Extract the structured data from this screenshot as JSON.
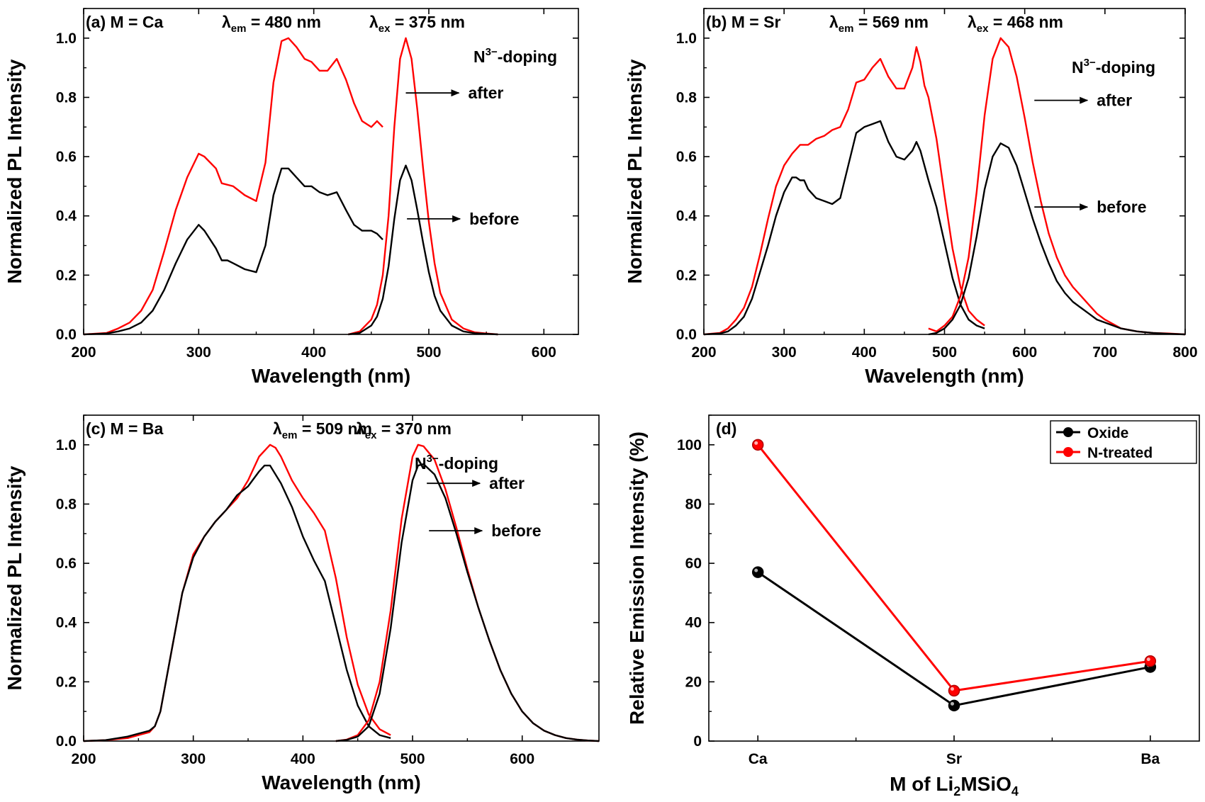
{
  "colors": {
    "oxide": "#000000",
    "n_treated": "#ff0000"
  },
  "chart_data": [
    {
      "id": "a",
      "type": "line",
      "annotation": {
        "label": "(a) M = Ca",
        "lambda_em": "480 nm",
        "lambda_ex": "375 nm"
      },
      "xlabel": "Wavelength (nm)",
      "ylabel": "Normalized PL Intensity",
      "xlim": [
        200,
        630
      ],
      "ylim": [
        0,
        1.1
      ],
      "xticks": [
        200,
        300,
        400,
        500,
        600
      ],
      "yticks": [
        0.0,
        0.2,
        0.4,
        0.6,
        0.8,
        1.0
      ],
      "doping_label": "-doping",
      "doping_ion": "N",
      "doping_sup": "3−",
      "arrow_after": "after",
      "arrow_before": "before",
      "arrow_after_at": [
        480,
        0.815
      ],
      "arrow_before_at": [
        481,
        0.39
      ],
      "series": [
        {
          "name": "after",
          "role": "excitation",
          "color": "#ff0000",
          "x": [
            200,
            220,
            230,
            240,
            250,
            260,
            270,
            280,
            290,
            300,
            305,
            310,
            315,
            320,
            330,
            340,
            350,
            358,
            365,
            372,
            378,
            385,
            392,
            398,
            405,
            412,
            420,
            428,
            435,
            442,
            450,
            455,
            460
          ],
          "y": [
            0,
            0.005,
            0.02,
            0.04,
            0.08,
            0.15,
            0.28,
            0.42,
            0.53,
            0.61,
            0.6,
            0.58,
            0.56,
            0.51,
            0.5,
            0.47,
            0.45,
            0.58,
            0.85,
            0.99,
            1.0,
            0.97,
            0.93,
            0.92,
            0.89,
            0.89,
            0.93,
            0.86,
            0.78,
            0.72,
            0.7,
            0.72,
            0.7
          ]
        },
        {
          "name": "before",
          "role": "excitation",
          "color": "#000000",
          "x": [
            200,
            220,
            230,
            240,
            250,
            260,
            270,
            280,
            290,
            300,
            305,
            310,
            315,
            320,
            325,
            330,
            340,
            350,
            358,
            365,
            372,
            378,
            385,
            392,
            398,
            405,
            412,
            420,
            428,
            435,
            442,
            450,
            455,
            460
          ],
          "y": [
            0,
            0.003,
            0.01,
            0.02,
            0.04,
            0.08,
            0.15,
            0.24,
            0.32,
            0.37,
            0.35,
            0.32,
            0.29,
            0.25,
            0.25,
            0.24,
            0.22,
            0.21,
            0.3,
            0.47,
            0.56,
            0.56,
            0.53,
            0.5,
            0.5,
            0.48,
            0.47,
            0.48,
            0.42,
            0.37,
            0.35,
            0.35,
            0.34,
            0.32
          ]
        },
        {
          "name": "after",
          "role": "emission",
          "color": "#ff0000",
          "x": [
            430,
            440,
            450,
            455,
            460,
            465,
            470,
            475,
            480,
            485,
            490,
            495,
            500,
            505,
            510,
            520,
            530,
            540,
            550,
            560
          ],
          "y": [
            0,
            0.01,
            0.05,
            0.1,
            0.2,
            0.4,
            0.7,
            0.93,
            1.0,
            0.93,
            0.76,
            0.56,
            0.38,
            0.24,
            0.14,
            0.05,
            0.02,
            0.007,
            0.003,
            0
          ]
        },
        {
          "name": "before",
          "role": "emission",
          "color": "#000000",
          "x": [
            430,
            440,
            450,
            455,
            460,
            465,
            470,
            475,
            480,
            485,
            490,
            495,
            500,
            505,
            510,
            520,
            530,
            540,
            550,
            560
          ],
          "y": [
            0,
            0.005,
            0.03,
            0.06,
            0.12,
            0.23,
            0.39,
            0.52,
            0.57,
            0.52,
            0.42,
            0.31,
            0.21,
            0.13,
            0.08,
            0.03,
            0.01,
            0.004,
            0.002,
            0
          ]
        }
      ]
    },
    {
      "id": "b",
      "type": "line",
      "annotation": {
        "label": "(b) M = Sr",
        "lambda_em": "569 nm",
        "lambda_ex": "468 nm"
      },
      "xlabel": "Wavelength (nm)",
      "ylabel": "Normalized PL Intensity",
      "xlim": [
        200,
        800
      ],
      "ylim": [
        0,
        1.1
      ],
      "xticks": [
        200,
        300,
        400,
        500,
        600,
        700,
        800
      ],
      "yticks": [
        0.0,
        0.2,
        0.4,
        0.6,
        0.8,
        1.0
      ],
      "doping_label": "-doping",
      "doping_ion": "N",
      "doping_sup": "3−",
      "arrow_after": "after",
      "arrow_before": "before",
      "arrow_after_at": [
        612,
        0.79
      ],
      "arrow_before_at": [
        612,
        0.43
      ],
      "series": [
        {
          "name": "after",
          "role": "excitation",
          "color": "#ff0000",
          "x": [
            200,
            220,
            230,
            240,
            250,
            260,
            270,
            280,
            290,
            300,
            310,
            320,
            330,
            340,
            350,
            360,
            370,
            380,
            390,
            400,
            410,
            420,
            430,
            440,
            450,
            460,
            465,
            470,
            475,
            480,
            490,
            500,
            510,
            520,
            530,
            540,
            550
          ],
          "y": [
            0,
            0.005,
            0.02,
            0.05,
            0.09,
            0.16,
            0.27,
            0.39,
            0.5,
            0.57,
            0.61,
            0.64,
            0.64,
            0.66,
            0.67,
            0.69,
            0.7,
            0.76,
            0.85,
            0.86,
            0.9,
            0.93,
            0.87,
            0.83,
            0.83,
            0.9,
            0.97,
            0.92,
            0.84,
            0.8,
            0.66,
            0.47,
            0.29,
            0.16,
            0.08,
            0.05,
            0.03
          ]
        },
        {
          "name": "before",
          "role": "excitation",
          "color": "#000000",
          "x": [
            200,
            220,
            230,
            240,
            250,
            260,
            270,
            280,
            290,
            300,
            310,
            315,
            320,
            325,
            330,
            340,
            350,
            360,
            370,
            380,
            390,
            400,
            410,
            420,
            430,
            440,
            450,
            460,
            465,
            470,
            480,
            490,
            500,
            510,
            520,
            530,
            540,
            550
          ],
          "y": [
            0,
            0.003,
            0.01,
            0.03,
            0.06,
            0.12,
            0.21,
            0.3,
            0.4,
            0.48,
            0.53,
            0.53,
            0.52,
            0.52,
            0.49,
            0.46,
            0.45,
            0.44,
            0.46,
            0.57,
            0.68,
            0.7,
            0.71,
            0.72,
            0.65,
            0.6,
            0.59,
            0.62,
            0.65,
            0.62,
            0.52,
            0.43,
            0.31,
            0.19,
            0.1,
            0.05,
            0.03,
            0.02
          ]
        },
        {
          "name": "after",
          "role": "emission",
          "color": "#ff0000",
          "x": [
            480,
            490,
            500,
            510,
            520,
            530,
            540,
            550,
            560,
            570,
            580,
            590,
            600,
            610,
            620,
            630,
            640,
            650,
            660,
            670,
            680,
            690,
            700,
            720,
            740,
            760,
            780,
            800
          ],
          "y": [
            0.02,
            0.01,
            0.03,
            0.06,
            0.13,
            0.26,
            0.48,
            0.74,
            0.93,
            1.0,
            0.97,
            0.87,
            0.73,
            0.58,
            0.45,
            0.34,
            0.26,
            0.2,
            0.16,
            0.13,
            0.1,
            0.07,
            0.05,
            0.02,
            0.01,
            0.005,
            0.003,
            0
          ]
        },
        {
          "name": "before",
          "role": "emission",
          "color": "#000000",
          "x": [
            480,
            490,
            500,
            510,
            520,
            530,
            540,
            550,
            560,
            570,
            580,
            590,
            600,
            610,
            620,
            630,
            640,
            650,
            660,
            670,
            680,
            690,
            700,
            720,
            740,
            760,
            780,
            800
          ],
          "y": [
            0,
            0.005,
            0.02,
            0.05,
            0.1,
            0.19,
            0.33,
            0.49,
            0.6,
            0.645,
            0.63,
            0.57,
            0.48,
            0.39,
            0.31,
            0.24,
            0.18,
            0.14,
            0.11,
            0.09,
            0.07,
            0.05,
            0.04,
            0.02,
            0.01,
            0.005,
            0.002,
            0
          ]
        }
      ]
    },
    {
      "id": "c",
      "type": "line",
      "annotation": {
        "label": "(c) M = Ba",
        "lambda_em": "509 nm",
        "lambda_ex": "370 nm"
      },
      "xlabel": "Wavelength (nm)",
      "ylabel": "Normalized PL Intensity",
      "xlim": [
        200,
        670
      ],
      "ylim": [
        0,
        1.1
      ],
      "xticks": [
        200,
        300,
        400,
        500,
        600
      ],
      "yticks": [
        0.0,
        0.2,
        0.4,
        0.6,
        0.8,
        1.0
      ],
      "doping_label": "-doping",
      "doping_ion": "N",
      "doping_sup": "3−",
      "arrow_after": "after",
      "arrow_before": "before",
      "arrow_after_at": [
        513,
        0.87
      ],
      "arrow_before_at": [
        515,
        0.71
      ],
      "series": [
        {
          "name": "after",
          "role": "excitation",
          "color": "#ff0000",
          "x": [
            200,
            220,
            240,
            250,
            260,
            265,
            270,
            280,
            290,
            300,
            310,
            320,
            330,
            340,
            350,
            360,
            370,
            375,
            380,
            390,
            400,
            410,
            420,
            430,
            440,
            450,
            460,
            470,
            480
          ],
          "y": [
            0,
            0.003,
            0.01,
            0.02,
            0.03,
            0.05,
            0.1,
            0.3,
            0.5,
            0.63,
            0.69,
            0.74,
            0.78,
            0.82,
            0.88,
            0.96,
            1.0,
            0.99,
            0.96,
            0.88,
            0.82,
            0.77,
            0.71,
            0.55,
            0.35,
            0.19,
            0.09,
            0.04,
            0.02
          ]
        },
        {
          "name": "before",
          "role": "excitation",
          "color": "#000000",
          "x": [
            200,
            220,
            240,
            250,
            260,
            265,
            270,
            280,
            290,
            300,
            310,
            320,
            330,
            340,
            350,
            360,
            365,
            370,
            380,
            390,
            400,
            410,
            420,
            430,
            440,
            450,
            460,
            470,
            480
          ],
          "y": [
            0,
            0.003,
            0.015,
            0.025,
            0.035,
            0.05,
            0.1,
            0.3,
            0.5,
            0.62,
            0.69,
            0.74,
            0.78,
            0.83,
            0.86,
            0.91,
            0.93,
            0.93,
            0.87,
            0.79,
            0.69,
            0.61,
            0.54,
            0.39,
            0.24,
            0.12,
            0.05,
            0.02,
            0.01
          ]
        },
        {
          "name": "after",
          "role": "emission",
          "color": "#ff0000",
          "x": [
            430,
            440,
            450,
            460,
            470,
            480,
            490,
            500,
            505,
            510,
            520,
            530,
            540,
            550,
            560,
            570,
            580,
            590,
            600,
            610,
            620,
            630,
            640,
            650,
            660,
            670
          ],
          "y": [
            0,
            0.005,
            0.02,
            0.07,
            0.2,
            0.44,
            0.75,
            0.96,
            1.0,
            0.995,
            0.95,
            0.85,
            0.72,
            0.58,
            0.45,
            0.34,
            0.24,
            0.16,
            0.1,
            0.06,
            0.035,
            0.02,
            0.01,
            0.005,
            0.002,
            0
          ]
        },
        {
          "name": "before",
          "role": "emission",
          "color": "#000000",
          "x": [
            430,
            440,
            450,
            460,
            470,
            480,
            490,
            500,
            505,
            510,
            520,
            530,
            540,
            550,
            560,
            570,
            580,
            590,
            600,
            610,
            620,
            630,
            640,
            650,
            660,
            670
          ],
          "y": [
            0,
            0.004,
            0.015,
            0.05,
            0.16,
            0.38,
            0.67,
            0.88,
            0.93,
            0.935,
            0.9,
            0.82,
            0.7,
            0.57,
            0.45,
            0.34,
            0.24,
            0.16,
            0.1,
            0.06,
            0.035,
            0.02,
            0.01,
            0.005,
            0.002,
            0
          ]
        }
      ]
    },
    {
      "id": "d",
      "type": "line",
      "annotation": {
        "label": "(d)"
      },
      "xlabel": "M of Li2MSiO4",
      "xlabel_parts": {
        "pre": "M of Li",
        "sub1": "2",
        "mid": "MSiO",
        "sub2": "4"
      },
      "ylabel": "Relative Emission Intensity (%)",
      "categories": [
        "Ca",
        "Sr",
        "Ba"
      ],
      "ylim": [
        0,
        110
      ],
      "yticks": [
        0,
        20,
        40,
        60,
        80,
        100
      ],
      "legend_position": "top-right",
      "series": [
        {
          "name": "Oxide",
          "color": "#000000",
          "values": [
            57,
            12,
            25
          ]
        },
        {
          "name": "N-treated",
          "color": "#ff0000",
          "values": [
            100,
            17,
            27
          ]
        }
      ]
    }
  ]
}
